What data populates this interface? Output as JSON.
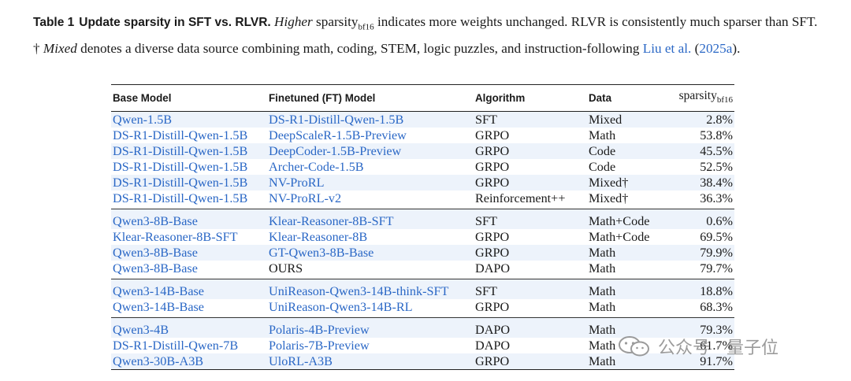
{
  "caption": {
    "label": "Table 1",
    "title": "Update sparsity in SFT vs. RLVR.",
    "pre_italic": " ",
    "italic_higher": "Higher",
    "sparsity_word": " sparsity",
    "sparsity_sub": "bf16",
    "after_sub": " indicates more weights unchanged. RLVR is consistently much sparser than SFT. † ",
    "italic_mixed": "Mixed",
    "after_mixed": " denotes a diverse data source combining math, coding, STEM, logic puzzles, and instruction-following ",
    "cite_authors": "Liu et al.",
    "cite_open": " (",
    "cite_year": "2025a",
    "cite_close": ")."
  },
  "table": {
    "headers": {
      "base": "Base Model",
      "ft": "Finetuned (FT) Model",
      "algo": "Algorithm",
      "data": "Data",
      "sparsity": "sparsity",
      "sparsity_sub": "bf16"
    },
    "rows": [
      {
        "base": "Qwen-1.5B",
        "ft": "DS-R1-Distill-Qwen-1.5B",
        "algo": "SFT",
        "data": "Mixed",
        "sparsity": "2.8%"
      },
      {
        "base": "DS-R1-Distill-Qwen-1.5B",
        "ft": "DeepScaleR-1.5B-Preview",
        "algo": "GRPO",
        "data": "Math",
        "sparsity": "53.8%"
      },
      {
        "base": "DS-R1-Distill-Qwen-1.5B",
        "ft": "DeepCoder-1.5B-Preview",
        "algo": "GRPO",
        "data": "Code",
        "sparsity": "45.5%"
      },
      {
        "base": "DS-R1-Distill-Qwen-1.5B",
        "ft": "Archer-Code-1.5B",
        "algo": "GRPO",
        "data": "Code",
        "sparsity": "52.5%"
      },
      {
        "base": "DS-R1-Distill-Qwen-1.5B",
        "ft": "NV-ProRL",
        "algo": "GRPO",
        "data": "Mixed†",
        "sparsity": "38.4%"
      },
      {
        "base": "DS-R1-Distill-Qwen-1.5B",
        "ft": "NV-ProRL-v2",
        "algo": "Reinforcement++",
        "data": "Mixed†",
        "sparsity": "36.3%"
      },
      {
        "base": "Qwen3-8B-Base",
        "ft": "Klear-Reasoner-8B-SFT",
        "algo": "SFT",
        "data": "Math+Code",
        "sparsity": "0.6%"
      },
      {
        "base": "Klear-Reasoner-8B-SFT",
        "ft": "Klear-Reasoner-8B",
        "algo": "GRPO",
        "data": "Math+Code",
        "sparsity": "69.5%"
      },
      {
        "base": "Qwen3-8B-Base",
        "ft": "GT-Qwen3-8B-Base",
        "algo": "GRPO",
        "data": "Math",
        "sparsity": "79.9%"
      },
      {
        "base": "Qwen3-8B-Base",
        "ft": "OURS",
        "algo": "DAPO",
        "data": "Math",
        "sparsity": "79.7%"
      },
      {
        "base": "Qwen3-14B-Base",
        "ft": "UniReason-Qwen3-14B-think-SFT",
        "algo": "SFT",
        "data": "Math",
        "sparsity": "18.8%"
      },
      {
        "base": "Qwen3-14B-Base",
        "ft": "UniReason-Qwen3-14B-RL",
        "algo": "GRPO",
        "data": "Math",
        "sparsity": "68.3%"
      },
      {
        "base": "Qwen3-4B",
        "ft": "Polaris-4B-Preview",
        "algo": "DAPO",
        "data": "Math",
        "sparsity": "79.3%"
      },
      {
        "base": "DS-R1-Distill-Qwen-7B",
        "ft": "Polaris-7B-Preview",
        "algo": "DAPO",
        "data": "Math",
        "sparsity": "61.7%"
      },
      {
        "base": "Qwen3-30B-A3B",
        "ft": "UloRL-A3B",
        "algo": "GRPO",
        "data": "Math",
        "sparsity": "91.7%"
      }
    ]
  },
  "watermark": {
    "icon": "wechat-icon",
    "text": "公众号 · 量子位"
  }
}
